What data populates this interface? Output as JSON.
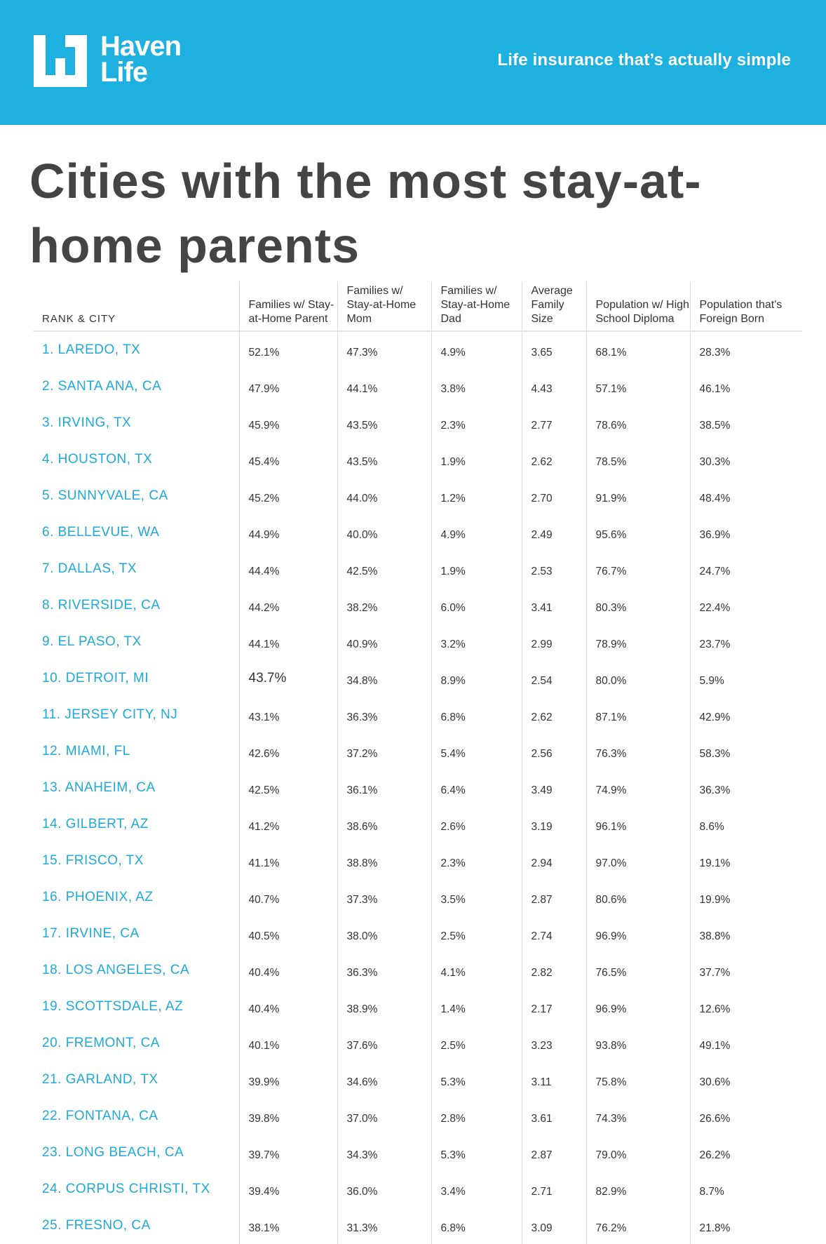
{
  "header": {
    "brand_line1": "Haven",
    "brand_line2": "Life",
    "tagline": "Life insurance that’s actually simple",
    "logo_icon": "haven-life-logo-mark",
    "color": "#1eb0df"
  },
  "title": "Cities with the most stay-at-home parents",
  "table": {
    "columns": [
      "RANK & CITY",
      "Families w/ Stay-at-Home Parent",
      "Families w/ Stay-at-Home Mom",
      "Families w/ Stay-at-Home Dad",
      "Average Family Size",
      "Population w/ High School Diploma",
      "Population that's Foreign Born"
    ],
    "rows": [
      [
        "1. LAREDO, TX",
        "52.1%",
        "47.3%",
        "4.9%",
        "3.65",
        "68.1%",
        "28.3%"
      ],
      [
        "2. SANTA ANA, CA",
        "47.9%",
        "44.1%",
        "3.8%",
        "4.43",
        "57.1%",
        "46.1%"
      ],
      [
        "3. IRVING, TX",
        "45.9%",
        "43.5%",
        "2.3%",
        "2.77",
        "78.6%",
        "38.5%"
      ],
      [
        "4. HOUSTON, TX",
        "45.4%",
        "43.5%",
        "1.9%",
        "2.62",
        "78.5%",
        "30.3%"
      ],
      [
        "5. SUNNYVALE, CA",
        "45.2%",
        "44.0%",
        "1.2%",
        "2.70",
        "91.9%",
        "48.4%"
      ],
      [
        "6. BELLEVUE, WA",
        "44.9%",
        "40.0%",
        "4.9%",
        "2.49",
        "95.6%",
        "36.9%"
      ],
      [
        "7. DALLAS, TX",
        "44.4%",
        "42.5%",
        "1.9%",
        "2.53",
        "76.7%",
        "24.7%"
      ],
      [
        "8. RIVERSIDE, CA",
        "44.2%",
        "38.2%",
        "6.0%",
        "3.41",
        "80.3%",
        "22.4%"
      ],
      [
        "9. EL PASO, TX",
        "44.1%",
        "40.9%",
        "3.2%",
        "2.99",
        "78.9%",
        "23.7%"
      ],
      [
        "10. DETROIT, MI",
        "43.7%",
        "34.8%",
        "8.9%",
        "2.54",
        "80.0%",
        "5.9%"
      ],
      [
        "11. JERSEY CITY, NJ",
        "43.1%",
        "36.3%",
        "6.8%",
        "2.62",
        "87.1%",
        "42.9%"
      ],
      [
        "12. MIAMI, FL",
        "42.6%",
        "37.2%",
        "5.4%",
        "2.56",
        "76.3%",
        "58.3%"
      ],
      [
        "13. ANAHEIM, CA",
        "42.5%",
        "36.1%",
        "6.4%",
        "3.49",
        "74.9%",
        "36.3%"
      ],
      [
        "14. GILBERT, AZ",
        "41.2%",
        "38.6%",
        "2.6%",
        "3.19",
        "96.1%",
        "8.6%"
      ],
      [
        "15. FRISCO, TX",
        "41.1%",
        "38.8%",
        "2.3%",
        "2.94",
        "97.0%",
        "19.1%"
      ],
      [
        "16. PHOENIX, AZ",
        "40.7%",
        "37.3%",
        "3.5%",
        "2.87",
        "80.6%",
        "19.9%"
      ],
      [
        "17. IRVINE, CA",
        "40.5%",
        "38.0%",
        "2.5%",
        "2.74",
        "96.9%",
        "38.8%"
      ],
      [
        "18. LOS ANGELES, CA",
        "40.4%",
        "36.3%",
        "4.1%",
        "2.82",
        "76.5%",
        "37.7%"
      ],
      [
        "19. SCOTTSDALE, AZ",
        "40.4%",
        "38.9%",
        "1.4%",
        "2.17",
        "96.9%",
        "12.6%"
      ],
      [
        "20. FREMONT, CA",
        "40.1%",
        "37.6%",
        "2.5%",
        "3.23",
        "93.8%",
        "49.1%"
      ],
      [
        "21. GARLAND, TX",
        "39.9%",
        "34.6%",
        "5.3%",
        "3.11",
        "75.8%",
        "30.6%"
      ],
      [
        "22. FONTANA, CA",
        "39.8%",
        "37.0%",
        "2.8%",
        "3.61",
        "74.3%",
        "26.6%"
      ],
      [
        "23. LONG BEACH, CA",
        "39.7%",
        "34.3%",
        "5.3%",
        "2.87",
        "79.0%",
        "26.2%"
      ],
      [
        "24. CORPUS CHRISTI, TX",
        "39.4%",
        "36.0%",
        "3.4%",
        "2.71",
        "82.9%",
        "8.7%"
      ],
      [
        "25. FRESNO, CA",
        "38.1%",
        "31.3%",
        "6.8%",
        "3.09",
        "76.2%",
        "21.8%"
      ]
    ],
    "emphasized_cell": {
      "row": 9,
      "col": 1
    },
    "city_color": "#1ea9da"
  }
}
